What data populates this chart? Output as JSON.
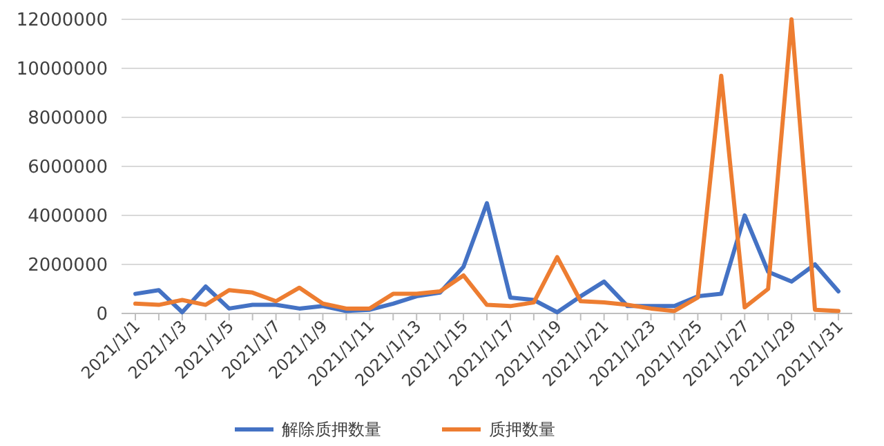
{
  "chart_data": {
    "type": "line",
    "categories": [
      "2021/1/1",
      null,
      "2021/1/3",
      null,
      "2021/1/5",
      null,
      "2021/1/7",
      null,
      "2021/1/9",
      null,
      "2021/1/11",
      null,
      "2021/1/13",
      null,
      "2021/1/15",
      null,
      "2021/1/17",
      null,
      "2021/1/19",
      null,
      "2021/1/21",
      null,
      "2021/1/23",
      null,
      "2021/1/25",
      null,
      "2021/1/27",
      null,
      "2021/1/29",
      null,
      "2021/1/31"
    ],
    "series": [
      {
        "name": "解除质押数量",
        "color": "#4472c4",
        "values": [
          800000,
          950000,
          50000,
          1100000,
          200000,
          350000,
          350000,
          200000,
          300000,
          100000,
          150000,
          400000,
          700000,
          850000,
          1900000,
          4500000,
          650000,
          550000,
          50000,
          700000,
          1300000,
          300000,
          300000,
          300000,
          700000,
          800000,
          4000000,
          1700000,
          1300000,
          2000000,
          900000
        ]
      },
      {
        "name": "质押数量",
        "color": "#ed7d31",
        "values": [
          400000,
          350000,
          550000,
          350000,
          950000,
          850000,
          500000,
          1050000,
          400000,
          200000,
          200000,
          800000,
          800000,
          900000,
          1550000,
          350000,
          300000,
          450000,
          2300000,
          500000,
          450000,
          350000,
          200000,
          100000,
          650000,
          9700000,
          250000,
          1000000,
          12000000,
          150000,
          100000
        ]
      }
    ],
    "ylim": [
      0,
      12000000
    ],
    "yticks": [
      0,
      2000000,
      4000000,
      6000000,
      8000000,
      10000000,
      12000000
    ],
    "grid": "y",
    "legend": "bottom",
    "marker": "none",
    "line_style": "solid"
  }
}
